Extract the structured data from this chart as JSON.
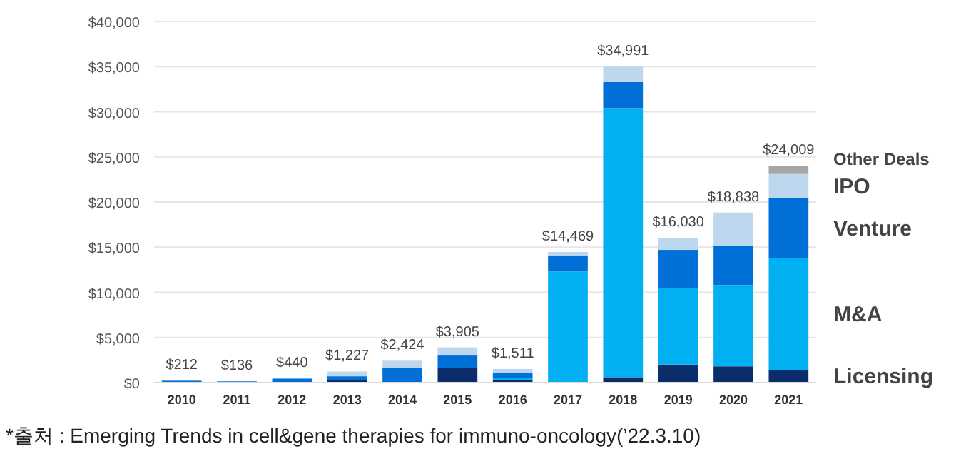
{
  "chart_data": {
    "type": "bar",
    "stacked": true,
    "categories": [
      "2010",
      "2011",
      "2012",
      "2013",
      "2014",
      "2015",
      "2016",
      "2017",
      "2018",
      "2019",
      "2020",
      "2021"
    ],
    "series": [
      {
        "name": "Licensing",
        "color": "#0b2d6b",
        "values": [
          0,
          0,
          0,
          300,
          null,
          1600,
          300,
          null,
          600,
          2000,
          1800,
          1400
        ]
      },
      {
        "name": "M&A",
        "color": "#00b0f0",
        "values": [
          0,
          0,
          0,
          0,
          0,
          0,
          200,
          12300,
          29800,
          8500,
          9000,
          12400
        ]
      },
      {
        "name": "Venture",
        "color": "#0070d8",
        "values": [
          212,
          136,
          440,
          400,
          1600,
          1400,
          600,
          1800,
          2900,
          4200,
          4400,
          6600
        ]
      },
      {
        "name": "IPO",
        "color": "#bdd7ee",
        "values": [
          0,
          0,
          null,
          527,
          824,
          905,
          411,
          369,
          1691,
          1330,
          3638,
          2700
        ]
      },
      {
        "name": "Other Deals",
        "color": "#a6a6a6",
        "values": [
          0,
          0,
          0,
          0,
          0,
          0,
          0,
          0,
          0,
          0,
          null,
          909
        ]
      }
    ],
    "totals": [
      "$212",
      "$136",
      "$440",
      "$1,227",
      "$2,424",
      "$3,905",
      "$1,511",
      "$14,469",
      "$34,991",
      "$16,030",
      "$18,838",
      "$24,009"
    ],
    "ylim": [
      0,
      40000
    ],
    "yticks": [
      {
        "value": 0,
        "label": "$0"
      },
      {
        "value": 5000,
        "label": "$5,000"
      },
      {
        "value": 10000,
        "label": "$10,000"
      },
      {
        "value": 15000,
        "label": "$15,000"
      },
      {
        "value": 20000,
        "label": "$20,000"
      },
      {
        "value": 25000,
        "label": "$25,000"
      },
      {
        "value": 30000,
        "label": "$30,000"
      },
      {
        "value": 35000,
        "label": "$35,000"
      },
      {
        "value": 40000,
        "label": "$40,000"
      }
    ],
    "grid": "y",
    "legend": "right",
    "annotations": [
      "*출처 : Emerging Trends in cell&gene therapies for immuno-oncology(’22.3.10)"
    ]
  }
}
